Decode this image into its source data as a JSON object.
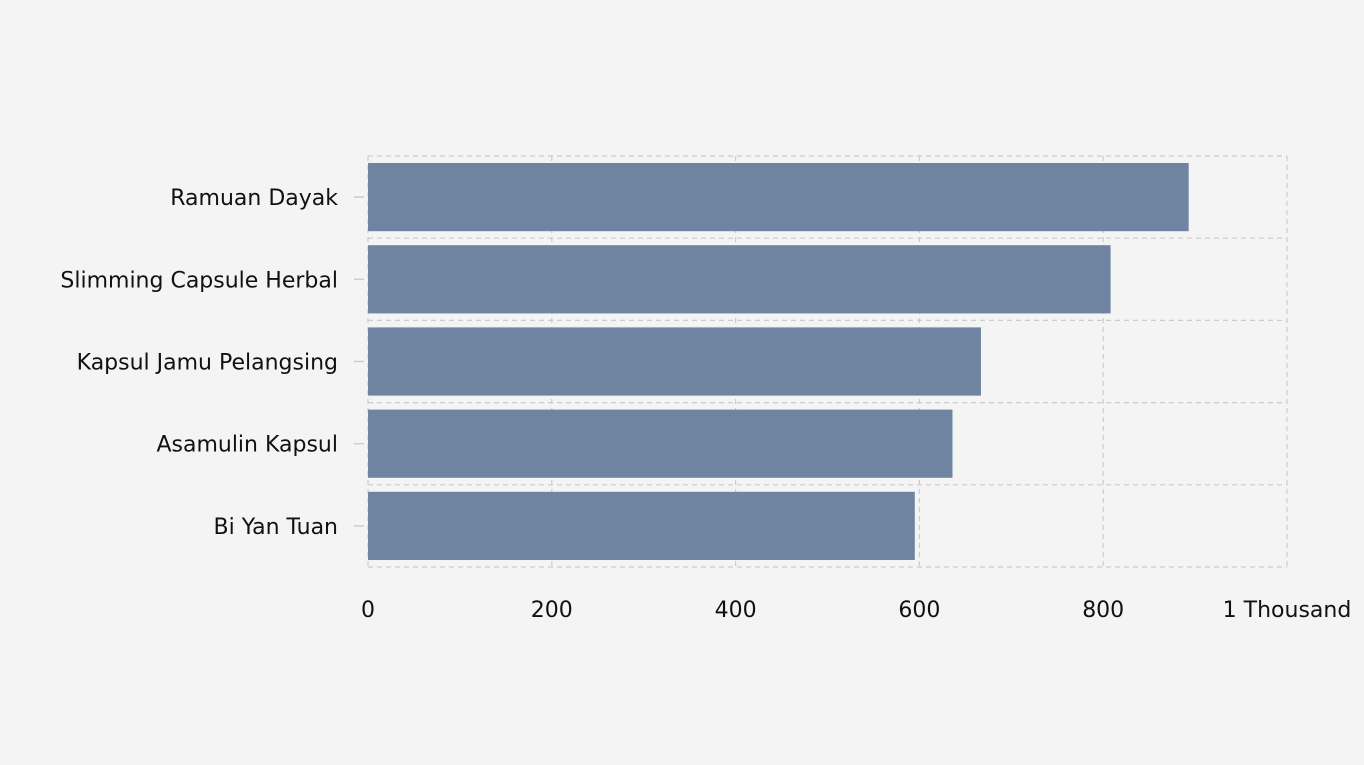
{
  "chart_data": {
    "type": "bar",
    "orientation": "horizontal",
    "title": "",
    "xlabel": "",
    "ylabel": "",
    "categories": [
      "Ramuan Dayak",
      "Slimming Capsule Herbal",
      "Kapsul Jamu Pelangsing",
      "Asamulin Kapsul",
      "Bi Yan Tuan"
    ],
    "values": [
      893,
      808,
      667,
      636,
      595
    ],
    "xlim": [
      0,
      1000
    ],
    "x_ticks": [
      0,
      200,
      400,
      600,
      800,
      1000
    ],
    "x_tick_labels": [
      "0",
      "200",
      "400",
      "600",
      "800",
      "1 Thousand"
    ],
    "grid": true,
    "bar_color": "#6f84a0",
    "grid_color": "#cccccc",
    "background_color": "#f4f4f4"
  }
}
